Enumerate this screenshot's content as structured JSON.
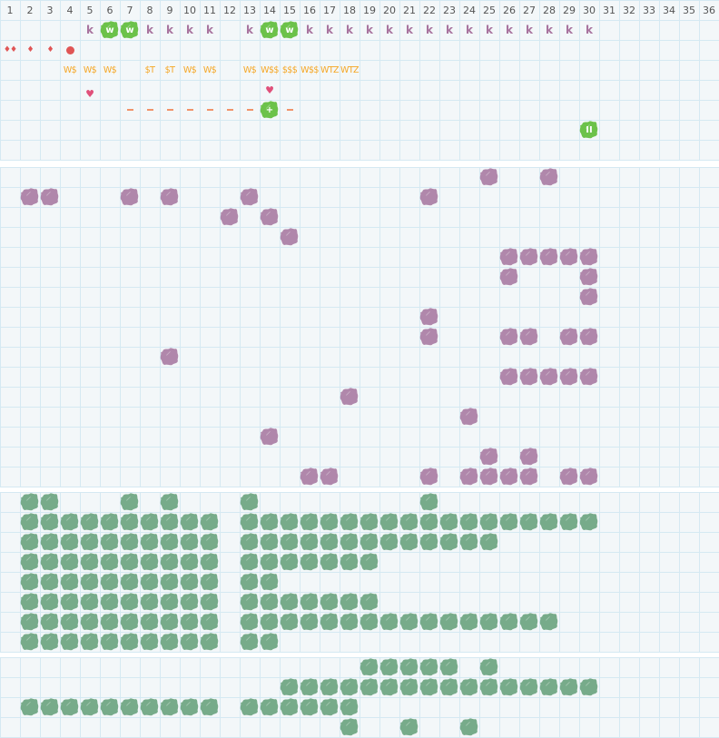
{
  "columns": [
    "1",
    "2",
    "3",
    "4",
    "5",
    "6",
    "7",
    "8",
    "9",
    "10",
    "11",
    "12",
    "13",
    "14",
    "15",
    "16",
    "17",
    "18",
    "19",
    "20",
    "21",
    "22",
    "23",
    "24",
    "25",
    "26",
    "27",
    "28",
    "29",
    "30",
    "31",
    "32",
    "33",
    "34",
    "35",
    "36"
  ],
  "colors": {
    "purple": "#b087ab",
    "green": "#77ab8a",
    "bright_green": "#6cc24a",
    "label": "#f5a623",
    "k": "#a8739e",
    "dash": "#f0936a",
    "drop": "#e05555",
    "heart": "#e0507a"
  },
  "top": {
    "k_row": {
      "k_label": "k",
      "k_cols": [
        5,
        8,
        9,
        10,
        11,
        13,
        16,
        17,
        18,
        19,
        20,
        21,
        22,
        23,
        24,
        25,
        26,
        27,
        28,
        29,
        30
      ],
      "w_label": "w",
      "w_cols": [
        6,
        7,
        14,
        15
      ]
    },
    "drop_row": {
      "double_drop_cols": [
        1
      ],
      "drop_cols": [
        2,
        3
      ],
      "circle_cols": [
        4
      ]
    },
    "label_row": [
      {
        "col": 4,
        "text": "W$"
      },
      {
        "col": 5,
        "text": "W$"
      },
      {
        "col": 6,
        "text": "W$"
      },
      {
        "col": 8,
        "text": "$T"
      },
      {
        "col": 9,
        "text": "$T"
      },
      {
        "col": 10,
        "text": "W$"
      },
      {
        "col": 11,
        "text": "W$"
      },
      {
        "col": 13,
        "text": "W$"
      },
      {
        "col": 14,
        "text": "W$$"
      },
      {
        "col": 15,
        "text": "$$$"
      },
      {
        "col": 16,
        "text": "W$$"
      },
      {
        "col": 17,
        "text": "WTZ"
      },
      {
        "col": 18,
        "text": "WTZ"
      }
    ],
    "heart_cols": [
      5,
      14
    ],
    "dash_row": {
      "dash_cols": [
        7,
        8,
        9,
        10,
        11,
        12,
        13,
        15
      ],
      "plus_col": 14,
      "plus_label": "+"
    },
    "pause_row": {
      "col": 30,
      "label": "II"
    }
  },
  "purple_section": [
    [
      25,
      28
    ],
    [
      2,
      3,
      7,
      9,
      13,
      22
    ],
    [
      12,
      14
    ],
    [
      15
    ],
    [
      26,
      27,
      28,
      29,
      30
    ],
    [
      26,
      30
    ],
    [
      30
    ],
    [
      22
    ],
    [
      22,
      26,
      27,
      29,
      30
    ],
    [
      9
    ],
    [
      26,
      27,
      28,
      29,
      30
    ],
    [
      18
    ],
    [
      24
    ],
    [
      14
    ],
    [
      25,
      27
    ],
    [
      16,
      17,
      22,
      24,
      25,
      26,
      27,
      29,
      30
    ]
  ],
  "green_section": [
    [
      2,
      3,
      7,
      9,
      13,
      22
    ],
    [
      2,
      3,
      4,
      5,
      6,
      7,
      8,
      9,
      10,
      11,
      13,
      14,
      15,
      16,
      17,
      18,
      19,
      20,
      21,
      22,
      23,
      24,
      25,
      26,
      27,
      28,
      29,
      30
    ],
    [
      2,
      3,
      4,
      5,
      6,
      7,
      8,
      9,
      10,
      11,
      13,
      14,
      15,
      16,
      17,
      18,
      19,
      20,
      21,
      22,
      23,
      24,
      25
    ],
    [
      2,
      3,
      4,
      5,
      6,
      7,
      8,
      9,
      10,
      11,
      13,
      14,
      15,
      16,
      17,
      18,
      19
    ],
    [
      2,
      3,
      4,
      5,
      6,
      7,
      8,
      9,
      10,
      11,
      13,
      14
    ],
    [
      2,
      3,
      4,
      5,
      6,
      7,
      8,
      9,
      10,
      11,
      13,
      14,
      15,
      16,
      17,
      18,
      19
    ],
    [
      2,
      3,
      4,
      5,
      6,
      7,
      8,
      9,
      10,
      11,
      13,
      14,
      15,
      16,
      17,
      18,
      19,
      20,
      21,
      22,
      23,
      24,
      25,
      26,
      27,
      28
    ],
    [
      2,
      3,
      4,
      5,
      6,
      7,
      8,
      9,
      10,
      11,
      13,
      14
    ]
  ],
  "bottom_section": [
    [
      19,
      20,
      21,
      22,
      23,
      25
    ],
    [
      15,
      16,
      17,
      18,
      19,
      20,
      21,
      22,
      23,
      24,
      25,
      26,
      27,
      28,
      29,
      30
    ],
    [
      2,
      3,
      4,
      5,
      6,
      7,
      8,
      9,
      10,
      11,
      13,
      14,
      15,
      16,
      17,
      18
    ],
    [
      18,
      21,
      24
    ]
  ]
}
